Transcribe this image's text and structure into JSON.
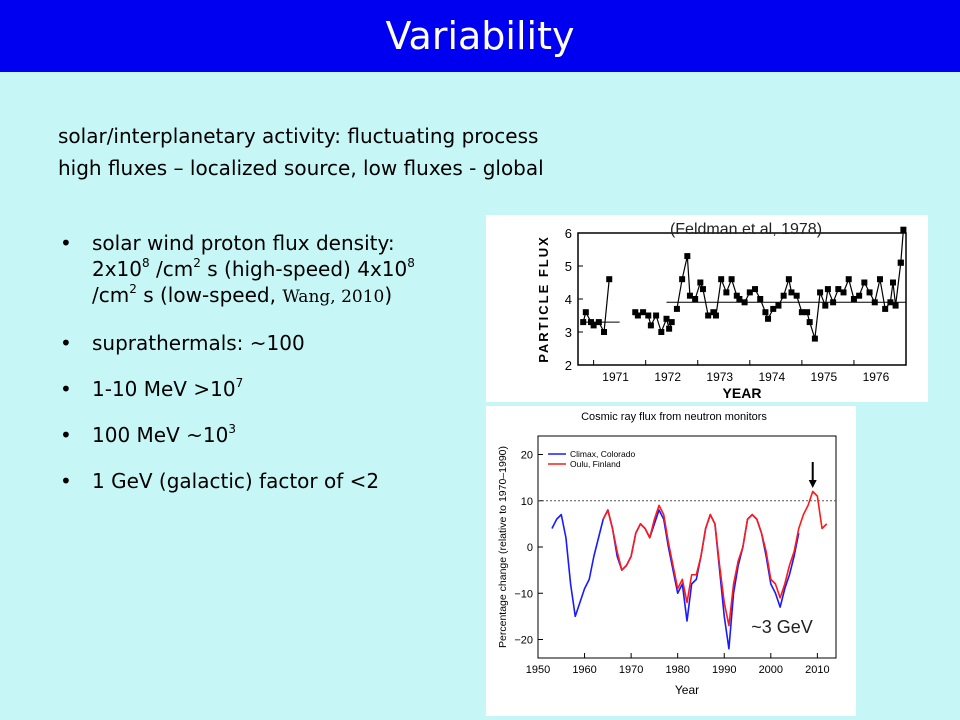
{
  "slide": {
    "title": "Variability",
    "intro_line1": "solar/interplanetary activity: fluctuating process",
    "intro_line2": "high fluxes – localized source, low fluxes - global",
    "bullet_glyph": "•",
    "bullets": [
      {
        "parts": [
          "solar wind proton flux density: 2x10",
          "8",
          " /cm",
          "2",
          " s (high-speed) 4x10",
          "8",
          " /cm",
          "2",
          " s (low-speed, ",
          "Wang, 2010",
          ")"
        ]
      },
      {
        "text": "suprathermals: ~100"
      },
      {
        "parts": [
          "1-10 MeV >10",
          "7"
        ]
      },
      {
        "parts": [
          "100 MeV ~10",
          "3"
        ]
      },
      {
        "text": "1 GeV (galactic) factor of <2"
      }
    ]
  },
  "chart_data": [
    {
      "type": "line",
      "citation": "(Feldman et al, 1978)",
      "xlabel": "YEAR",
      "ylabel": "PARTICLE FLUX",
      "xtick_labels": [
        "1971",
        "1972",
        "1973",
        "1974",
        "1975",
        "1976"
      ],
      "ytick_labels": [
        "2",
        "3",
        "4",
        "5",
        "6"
      ],
      "ylim": [
        2,
        6
      ],
      "xlim": [
        1970.7,
        1977.0
      ],
      "reference_levels": [
        {
          "x": [
            1970.8,
            1971.5
          ],
          "y": 3.3
        },
        {
          "x": [
            1972.4,
            1977.0
          ],
          "y": 3.9
        }
      ],
      "segments": [
        {
          "x": [
            1970.8,
            1970.85,
            1970.95,
            1971.0,
            1971.1,
            1971.2,
            1971.3
          ],
          "y": [
            3.3,
            3.6,
            3.3,
            3.2,
            3.3,
            3.0,
            4.6
          ]
        },
        {
          "x": [
            1971.8,
            1971.85,
            1971.95,
            1972.05,
            1972.1,
            1972.2,
            1972.3,
            1972.4,
            1972.45,
            1972.5
          ],
          "y": [
            3.6,
            3.5,
            3.6,
            3.5,
            3.2,
            3.5,
            3.0,
            3.4,
            3.1,
            3.3
          ]
        },
        {
          "x": [
            1972.6,
            1972.7,
            1972.8,
            1972.85,
            1972.95,
            1973.05,
            1973.1,
            1973.2,
            1973.3,
            1973.35,
            1973.45,
            1973.55,
            1973.65,
            1973.75,
            1973.8,
            1973.9,
            1974.0,
            1974.1,
            1974.2,
            1974.3,
            1974.35,
            1974.45,
            1974.55,
            1974.65,
            1974.75,
            1974.8,
            1974.9,
            1975.0,
            1975.1,
            1975.15,
            1975.25,
            1975.35,
            1975.45,
            1975.5,
            1975.6,
            1975.7,
            1975.8,
            1975.9,
            1976.0,
            1976.1,
            1976.2,
            1976.3,
            1976.4,
            1976.5,
            1976.6,
            1976.7,
            1976.75,
            1976.8,
            1976.9
          ],
          "y": [
            3.7,
            4.6,
            5.3,
            4.1,
            4.0,
            4.5,
            4.3,
            3.5,
            3.6,
            3.5,
            4.6,
            4.2,
            4.6,
            4.1,
            4.0,
            3.9,
            4.2,
            4.3,
            4.0,
            3.6,
            3.4,
            3.7,
            3.8,
            4.1,
            4.6,
            4.2,
            4.1,
            3.6,
            3.6,
            3.3,
            2.8,
            4.2,
            3.8,
            4.3,
            3.9,
            4.3,
            4.2,
            4.6,
            4.0,
            4.1,
            4.5,
            4.2,
            3.9,
            4.6,
            3.7,
            3.9,
            4.5,
            3.8,
            5.1
          ]
        },
        {
          "x": [
            1976.9,
            1976.95
          ],
          "y": [
            5.1,
            6.1
          ]
        }
      ]
    },
    {
      "type": "line",
      "title": "Cosmic ray flux from neutron monitors",
      "xlabel": "Year",
      "ylabel": "Percentage change (relative to 1970–1990)",
      "xtick_labels": [
        "1950",
        "1960",
        "1970",
        "1980",
        "1990",
        "2000",
        "2010"
      ],
      "ytick_labels": [
        "−20",
        "−10",
        "0",
        "10",
        "20"
      ],
      "xlim": [
        1950,
        2014
      ],
      "ylim": [
        -24,
        24
      ],
      "reference_line": 10,
      "annotation": "~3 GeV",
      "arrow_x": 2009,
      "series": [
        {
          "name": "Climax, Colorado",
          "color": "#1a1aff",
          "x": [
            1953,
            1954,
            1955,
            1956,
            1957,
            1958,
            1959,
            1960,
            1961,
            1962,
            1963,
            1964,
            1965,
            1966,
            1967,
            1968,
            1969,
            1970,
            1971,
            1972,
            1973,
            1974,
            1975,
            1976,
            1977,
            1978,
            1979,
            1980,
            1981,
            1982,
            1983,
            1984,
            1985,
            1986,
            1987,
            1988,
            1989,
            1990,
            1991,
            1992,
            1993,
            1994,
            1995,
            1996,
            1997,
            1998,
            1999,
            2000,
            2001,
            2002,
            2003,
            2004,
            2005,
            2006
          ],
          "y": [
            4,
            6,
            7,
            2,
            -8,
            -15,
            -12,
            -9,
            -7,
            -2,
            2,
            6,
            8,
            4,
            -2,
            -5,
            -4,
            -2,
            3,
            5,
            4,
            2,
            5,
            8,
            6,
            0,
            -5,
            -10,
            -8,
            -16,
            -8,
            -7,
            -2,
            4,
            7,
            5,
            -5,
            -15,
            -22,
            -10,
            -4,
            0,
            6,
            7,
            6,
            3,
            -2,
            -8,
            -10,
            -13,
            -9,
            -6,
            -2,
            3
          ]
        },
        {
          "name": "Oulu, Finland",
          "color": "#ff1a1a",
          "x": [
            1964,
            1965,
            1966,
            1967,
            1968,
            1969,
            1970,
            1971,
            1972,
            1973,
            1974,
            1975,
            1976,
            1977,
            1978,
            1979,
            1980,
            1981,
            1982,
            1983,
            1984,
            1985,
            1986,
            1987,
            1988,
            1989,
            1990,
            1991,
            1992,
            1993,
            1994,
            1995,
            1996,
            1997,
            1998,
            1999,
            2000,
            2001,
            2002,
            2003,
            2004,
            2005,
            2006,
            2007,
            2008,
            2009,
            2010,
            2011,
            2012
          ],
          "y": [
            6,
            8,
            4,
            -1,
            -5,
            -4,
            -2,
            3,
            5,
            4,
            2,
            6,
            9,
            7,
            1,
            -4,
            -9,
            -7,
            -12,
            -6,
            -6,
            -2,
            4,
            7,
            5,
            -4,
            -12,
            -17,
            -8,
            -3,
            0,
            6,
            7,
            6,
            3,
            -1,
            -7,
            -8,
            -11,
            -8,
            -4,
            -1,
            4,
            7,
            9,
            12,
            11,
            4,
            5
          ]
        }
      ]
    }
  ]
}
